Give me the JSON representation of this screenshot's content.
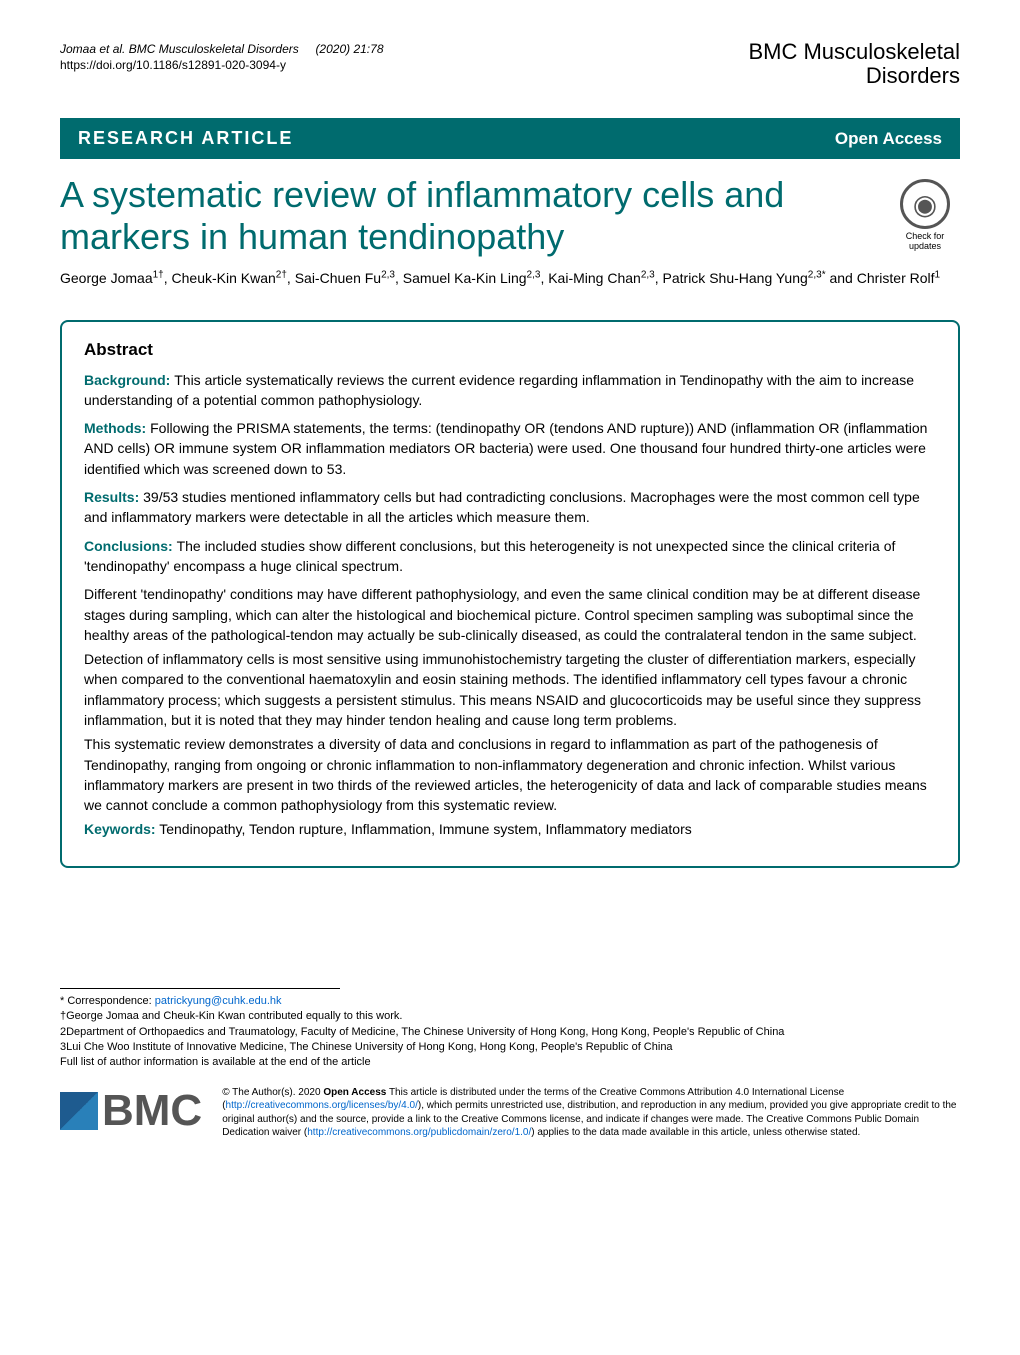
{
  "colors": {
    "brand": "#006b6e",
    "link": "#0066cc",
    "text": "#000000",
    "background": "#ffffff"
  },
  "header": {
    "citation_authors": "Jomaa et al. BMC Musculoskeletal Disorders",
    "citation_issue": "(2020) 21:78",
    "doi": "https://doi.org/10.1186/s12891-020-3094-y",
    "journal_name_line1": "BMC Musculoskeletal",
    "journal_name_line2": "Disorders"
  },
  "article_type_bar": {
    "type_label": "RESEARCH ARTICLE",
    "access_label": "Open Access"
  },
  "title": "A systematic review of inflammatory cells and markers in human tendinopathy",
  "crossmark": {
    "line1": "Check for",
    "line2": "updates"
  },
  "authors_html": "George Jomaa<sup>1†</sup>, Cheuk-Kin Kwan<sup>2†</sup>, Sai-Chuen Fu<sup>2,3</sup>, Samuel Ka-Kin Ling<sup>2,3</sup>, Kai-Ming Chan<sup>2,3</sup>, Patrick Shu-Hang Yung<sup>2,3*</sup> and Christer Rolf<sup>1</sup>",
  "abstract": {
    "heading": "Abstract",
    "sections": [
      {
        "label": "Background:",
        "text": "This article systematically reviews the current evidence regarding inflammation in Tendinopathy with the aim to increase understanding of a potential common pathophysiology."
      },
      {
        "label": "Methods:",
        "text": "Following the PRISMA statements, the terms: (tendinopathy OR (tendons AND rupture)) AND (inflammation OR (inflammation AND cells) OR immune system OR inflammation mediators OR bacteria) were used. One thousand four hundred thirty-one articles were identified which was screened down to 53."
      },
      {
        "label": "Results:",
        "text": "39/53 studies mentioned inflammatory cells but had contradicting conclusions. Macrophages were the most common cell type and inflammatory markers were detectable in all the articles which measure them."
      },
      {
        "label": "Conclusions:",
        "text": "The included studies show different conclusions, but this heterogeneity is not unexpected since the clinical criteria of 'tendinopathy' encompass a huge clinical spectrum."
      }
    ],
    "conclusion_paras": [
      "Different 'tendinopathy' conditions may have different pathophysiology, and even the same clinical condition may be at different disease stages during sampling, which can alter the histological and biochemical picture. Control specimen sampling was suboptimal since the healthy areas of the pathological-tendon may actually be sub-clinically diseased, as could the contralateral tendon in the same subject.",
      "Detection of inflammatory cells is most sensitive using immunohistochemistry targeting the cluster of differentiation markers, especially when compared to the conventional haematoxylin and eosin staining methods. The identified inflammatory cell types favour a chronic inflammatory process; which suggests a persistent stimulus. This means NSAID and glucocorticoids may be useful since they suppress inflammation, but it is noted that they may hinder tendon healing and cause long term problems.",
      "This systematic review demonstrates a diversity of data and conclusions in regard to inflammation as part of the pathogenesis of Tendinopathy, ranging from ongoing or chronic inflammation to non-inflammatory degeneration and chronic infection. Whilst various inflammatory markers are present in two thirds of the reviewed articles, the heterogenicity of data and lack of comparable studies means we cannot conclude a common pathophysiology from this systematic review."
    ],
    "keywords_label": "Keywords:",
    "keywords": "Tendinopathy, Tendon rupture, Inflammation, Immune system, Inflammatory mediators"
  },
  "correspondence": {
    "label": "* Correspondence:",
    "email": "patrickyung@cuhk.edu.hk",
    "equal_contrib": "†George Jomaa and Cheuk-Kin Kwan contributed equally to this work.",
    "affil2": "2Department of Orthopaedics and Traumatology, Faculty of Medicine, The Chinese University of Hong Kong, Hong Kong, People's Republic of China",
    "affil3": "3Lui Che Woo Institute of Innovative Medicine, The Chinese University of Hong Kong, Hong Kong, People's Republic of China",
    "full_list": "Full list of author information is available at the end of the article"
  },
  "publisher_logo": "BMC",
  "license": {
    "prefix": "© The Author(s). 2020 ",
    "open_access_bold": "Open Access",
    "text_part1": " This article is distributed under the terms of the Creative Commons Attribution 4.0 International License (",
    "link1": "http://creativecommons.org/licenses/by/4.0/",
    "text_part2": "), which permits unrestricted use, distribution, and reproduction in any medium, provided you give appropriate credit to the original author(s) and the source, provide a link to the Creative Commons license, and indicate if changes were made. The Creative Commons Public Domain Dedication waiver (",
    "link2": "http://creativecommons.org/publicdomain/zero/1.0/",
    "text_part3": ") applies to the data made available in this article, unless otherwise stated."
  }
}
